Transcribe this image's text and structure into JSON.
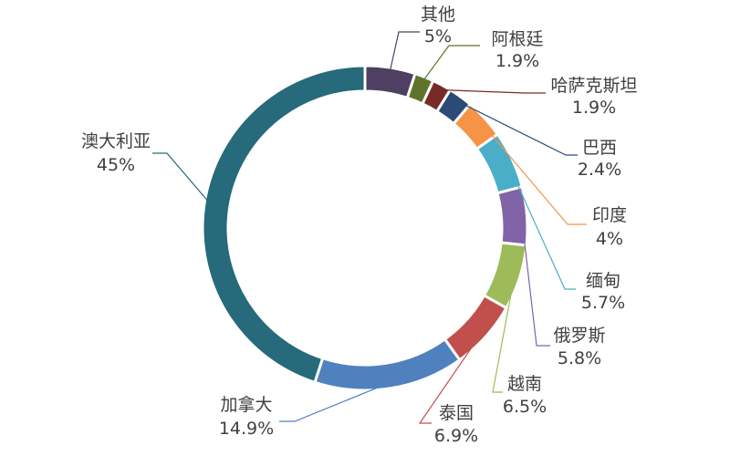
{
  "chart_data": {
    "type": "pie",
    "subtype": "donut",
    "title": "",
    "legend": "none",
    "slices": [
      {
        "label": "其他",
        "value": 5,
        "value_text": "5%",
        "color": "#4f3f62"
      },
      {
        "label": "阿根廷",
        "value": 1.9,
        "value_text": "1.9%",
        "color": "#5e742b"
      },
      {
        "label": "哈萨克斯坦",
        "value": 1.9,
        "value_text": "1.9%",
        "color": "#772a28"
      },
      {
        "label": "巴西",
        "value": 2.4,
        "value_text": "2.4%",
        "color": "#2b4a76"
      },
      {
        "label": "印度",
        "value": 4,
        "value_text": "4%",
        "color": "#f59446"
      },
      {
        "label": "缅甸",
        "value": 5.7,
        "value_text": "5.7%",
        "color": "#4aaec9"
      },
      {
        "label": "俄罗斯",
        "value": 5.8,
        "value_text": "5.8%",
        "color": "#8064a7"
      },
      {
        "label": "越南",
        "value": 6.5,
        "value_text": "6.5%",
        "color": "#9dbb59"
      },
      {
        "label": "泰国",
        "value": 6.9,
        "value_text": "6.9%",
        "color": "#c1504d"
      },
      {
        "label": "加拿大",
        "value": 14.9,
        "value_text": "14.9%",
        "color": "#4f81be"
      },
      {
        "label": "澳大利亚",
        "value": 45,
        "value_text": "45%",
        "color": "#266a7b"
      }
    ]
  }
}
